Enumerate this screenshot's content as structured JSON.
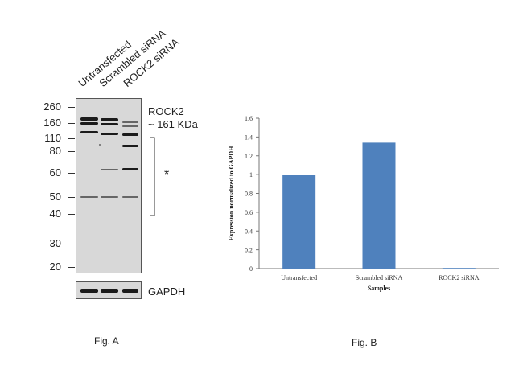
{
  "fig_a": {
    "caption": "Fig. A",
    "lanes": [
      "Untransfected",
      "Scrambled siRNA",
      "ROCK2  siRNA"
    ],
    "mw_markers": [
      "260",
      "160",
      "110",
      "80",
      "60",
      "50",
      "40",
      "30",
      "20"
    ],
    "target_label": "ROCK2",
    "target_size": "~ 161 KDa",
    "nonspecific_marker": "*",
    "loading_control": "GAPDH"
  },
  "fig_b": {
    "caption": "Fig. B"
  },
  "chart_data": {
    "type": "bar",
    "categories": [
      "Untransfected",
      "Scrambled siRNA",
      "ROCK2 siRNA"
    ],
    "values": [
      1.0,
      1.34,
      0.005
    ],
    "title": "",
    "xlabel": "Samples",
    "ylabel": "Expression normalized to GAPDH",
    "ylim": [
      0,
      1.6
    ],
    "yticks": [
      "0",
      "0.2",
      "0.4",
      "0.6",
      "0.8",
      "1",
      "1.2",
      "1.4",
      "1.6"
    ],
    "grid": false,
    "bar_color": "#4f81bd"
  }
}
